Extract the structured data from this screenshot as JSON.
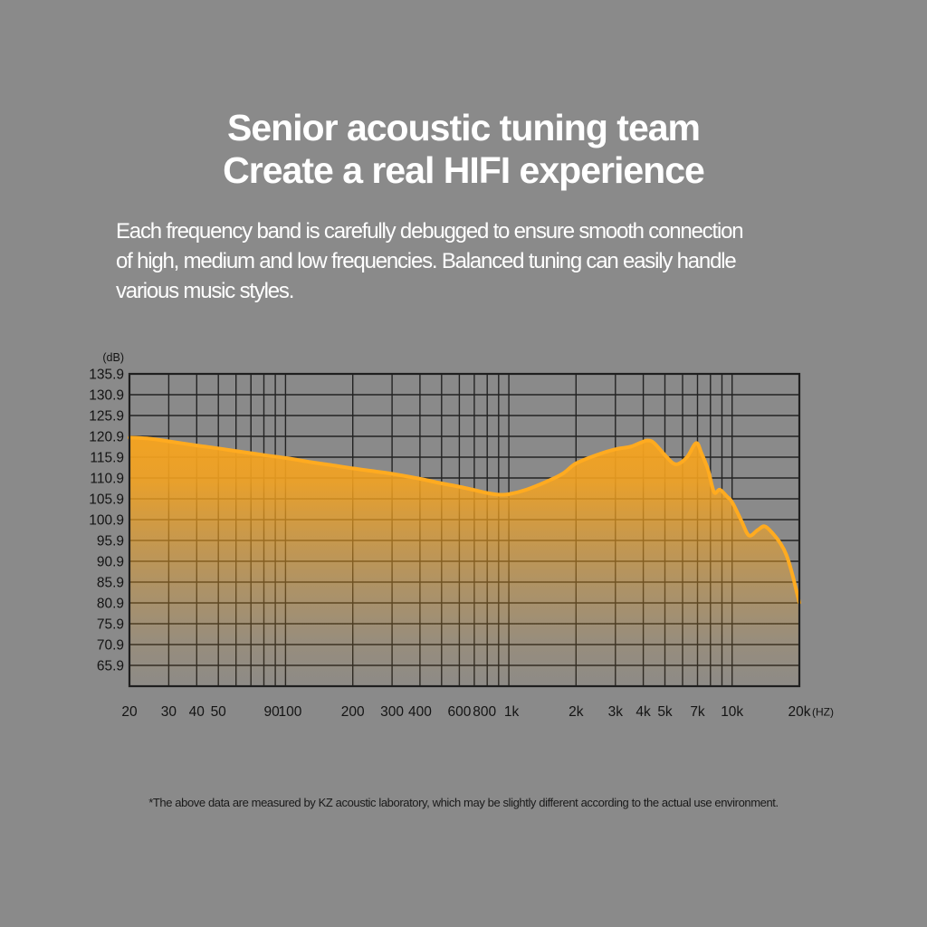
{
  "page": {
    "background_color": "#8a8a8a"
  },
  "header": {
    "title_line1": "Senior acoustic tuning team",
    "title_line2": "Create a real HIFI experience",
    "description_lines": [
      "Each frequency band is carefully debugged to ensure smooth connection",
      "of high, medium and low frequencies. Balanced tuning can easily handle",
      "various music styles."
    ]
  },
  "footnote": "*The above data are measured by KZ acoustic laboratory, which may be slightly different according to the actual use environment.",
  "chart_data": {
    "type": "area",
    "title": "",
    "y_unit_label": "(dB)",
    "x_unit_label": "(HZ)",
    "x_scale": "log",
    "xlim": [
      20,
      20000
    ],
    "ylim": [
      60.9,
      135.9
    ],
    "grid": true,
    "legend": "none",
    "grid_color": "#232323",
    "border_color": "#1f1f1f",
    "axis_text_color": "#141414",
    "y_gridlines": [
      135.9,
      130.9,
      125.9,
      120.9,
      115.9,
      110.9,
      105.9,
      100.9,
      95.9,
      90.9,
      85.9,
      80.9,
      75.9,
      70.9,
      65.9,
      60.9
    ],
    "y_tick_labels": [
      "135.9",
      "130.9",
      "125.9",
      "120.9",
      "115.9",
      "110.9",
      "105.9",
      "100.9",
      "95.9",
      "90.9",
      "85.9",
      "80.9",
      "75.9",
      "70.9",
      "65.9"
    ],
    "x_gridlines": [
      20,
      30,
      40,
      50,
      60,
      70,
      80,
      90,
      100,
      200,
      300,
      400,
      500,
      600,
      700,
      800,
      900,
      1000,
      2000,
      3000,
      4000,
      5000,
      6000,
      7000,
      8000,
      9000,
      10000,
      20000
    ],
    "x_ticks": [
      {
        "v": 20,
        "label": "20"
      },
      {
        "v": 30,
        "label": "30"
      },
      {
        "v": 40,
        "label": "40"
      },
      {
        "v": 50,
        "label": "50"
      },
      {
        "v": 90,
        "label": "90"
      },
      {
        "v": 100,
        "label": "100"
      },
      {
        "v": 200,
        "label": "200"
      },
      {
        "v": 300,
        "label": "300"
      },
      {
        "v": 400,
        "label": "400"
      },
      {
        "v": 600,
        "label": "600"
      },
      {
        "v": 800,
        "label": "800"
      },
      {
        "v": 1000,
        "label": "1k"
      },
      {
        "v": 2000,
        "label": "2k"
      },
      {
        "v": 3000,
        "label": "3k"
      },
      {
        "v": 4000,
        "label": "4k"
      },
      {
        "v": 5000,
        "label": "5k"
      },
      {
        "v": 7000,
        "label": "7k"
      },
      {
        "v": 10000,
        "label": "10k"
      },
      {
        "v": 20000,
        "label": "20k"
      }
    ],
    "series": [
      {
        "name": "kz-frequency-response",
        "stroke_color": "#ffab20",
        "fill_color": "#f5a31f",
        "points": [
          [
            20,
            120.6
          ],
          [
            24,
            120.4
          ],
          [
            30,
            119.7
          ],
          [
            40,
            118.7
          ],
          [
            50,
            118.0
          ],
          [
            65,
            117.1
          ],
          [
            80,
            116.4
          ],
          [
            100,
            115.7
          ],
          [
            130,
            114.7
          ],
          [
            160,
            114.0
          ],
          [
            200,
            113.2
          ],
          [
            250,
            112.5
          ],
          [
            300,
            111.9
          ],
          [
            400,
            110.7
          ],
          [
            500,
            109.6
          ],
          [
            600,
            108.8
          ],
          [
            700,
            108.0
          ],
          [
            800,
            107.3
          ],
          [
            900,
            106.9
          ],
          [
            1000,
            107.0
          ],
          [
            1200,
            108.1
          ],
          [
            1500,
            110.2
          ],
          [
            1750,
            112.0
          ],
          [
            2000,
            114.4
          ],
          [
            2500,
            116.5
          ],
          [
            3000,
            117.8
          ],
          [
            3500,
            118.4
          ],
          [
            3900,
            119.4
          ],
          [
            4150,
            119.9
          ],
          [
            4450,
            119.4
          ],
          [
            5000,
            116.4
          ],
          [
            5450,
            114.4
          ],
          [
            5800,
            114.4
          ],
          [
            6300,
            116.0
          ],
          [
            6900,
            119.3
          ],
          [
            7300,
            116.8
          ],
          [
            7800,
            112.9
          ],
          [
            8300,
            107.5
          ],
          [
            8800,
            108.1
          ],
          [
            9500,
            106.4
          ],
          [
            10000,
            105.1
          ],
          [
            11000,
            100.6
          ],
          [
            11900,
            97.1
          ],
          [
            13000,
            98.4
          ],
          [
            14000,
            99.3
          ],
          [
            15200,
            97.6
          ],
          [
            16500,
            95.1
          ],
          [
            17500,
            92.4
          ],
          [
            18500,
            88.3
          ],
          [
            19300,
            84.3
          ],
          [
            20000,
            81.0
          ]
        ]
      }
    ]
  }
}
